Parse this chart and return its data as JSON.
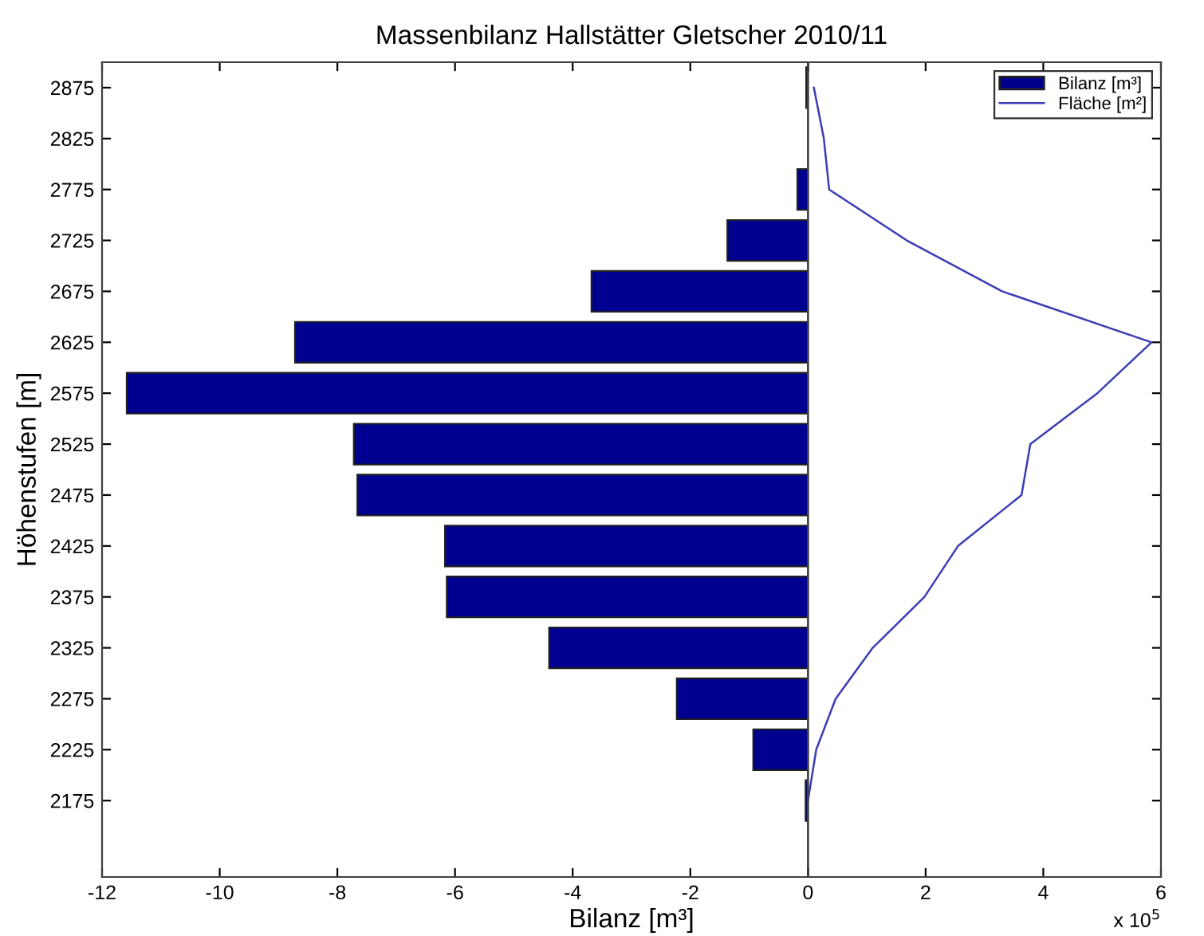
{
  "chart_data": [
    {
      "type": "bar",
      "orientation": "horizontal",
      "title": "Massenbilanz Hallstätter Gletscher 2010/11",
      "xlabel": "Bilanz [m³]",
      "ylabel": "Höhenstufen [m]",
      "x": [
        2175,
        2225,
        2275,
        2325,
        2375,
        2425,
        2475,
        2525,
        2575,
        2625,
        2675,
        2725,
        2775,
        2825,
        2875
      ],
      "series": [
        {
          "name": "Bilanz [m³]",
          "color": "#000090",
          "values": [
            -0.04,
            -0.93,
            -2.23,
            -4.4,
            -6.14,
            -6.17,
            -7.66,
            -7.72,
            -11.58,
            -8.72,
            -3.68,
            -1.37,
            -0.18,
            null,
            -0.03
          ]
        }
      ],
      "xlim": [
        -12,
        0
      ],
      "xticks": [
        -12,
        -10,
        -8,
        -6,
        -4,
        -2,
        0
      ],
      "ylim": [
        2100,
        2900
      ],
      "yticks": [
        2175,
        2225,
        2275,
        2325,
        2375,
        2425,
        2475,
        2525,
        2575,
        2625,
        2675,
        2725,
        2775,
        2825,
        2875
      ],
      "grid": false,
      "legend": "top right"
    },
    {
      "type": "line",
      "orientation": "horizontal",
      "x": [
        2175,
        2225,
        2275,
        2325,
        2375,
        2425,
        2475,
        2525,
        2575,
        2625,
        2675,
        2725,
        2775,
        2825,
        2875
      ],
      "series": [
        {
          "name": "Fläche [m²]",
          "color": "#3c3cb4",
          "values": [
            0,
            0.14,
            0.47,
            1.1,
            1.98,
            2.55,
            3.63,
            3.78,
            4.92,
            5.84,
            3.3,
            1.68,
            0.36,
            0.27,
            0.1
          ]
        }
      ],
      "xlim": [
        0,
        6
      ],
      "xticks": [
        {
          "value": 0,
          "label": null
        },
        2,
        4,
        6
      ],
      "ylim": [
        2100,
        2900
      ],
      "yticks": [
        2175,
        2225,
        2275,
        2325,
        2375,
        2425,
        2475,
        2525,
        2575,
        2625,
        2675,
        2725,
        2775,
        2825,
        2875
      ],
      "tick_labels": "x",
      "grid": false,
      "legend": "top right",
      "annotations": [
        "x 10$^{5}$"
      ]
    }
  ]
}
